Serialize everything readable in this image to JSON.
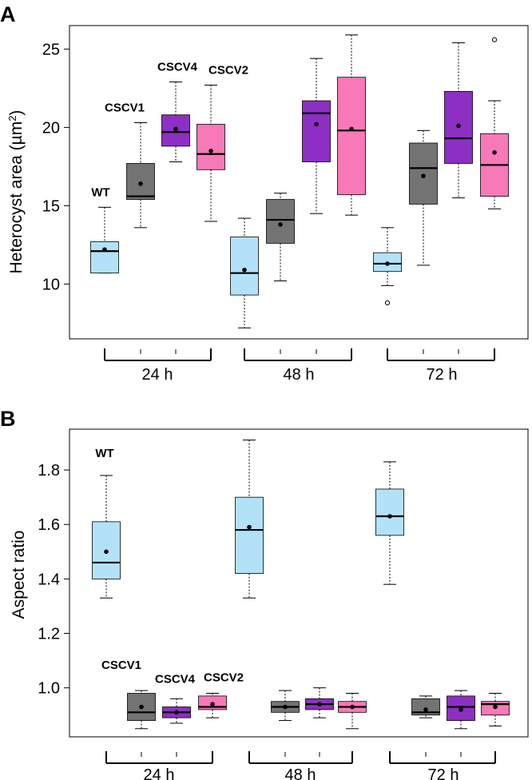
{
  "colors": {
    "WT": "#b3e2f8",
    "CSCV1": "#737373",
    "CSCV4": "#8e2fc4",
    "CSCV2": "#f879b8"
  },
  "chart_data": [
    {
      "panel": "A",
      "type": "boxplot",
      "ylabel_prefix": "Heterocyst area (",
      "ylabel_unit": "µm",
      "ylabel_sup": "2",
      "ylabel_suffix": ")",
      "ylim": [
        6.5,
        26.5
      ],
      "yticks": [
        10,
        15,
        20,
        25
      ],
      "groups": [
        "24 h",
        "48 h",
        "72 h"
      ],
      "strains": [
        "WT",
        "CSCV1",
        "CSCV4",
        "CSCV2"
      ],
      "boxes": [
        {
          "group": "24 h",
          "strain": "WT",
          "min": 10.7,
          "q1": 10.7,
          "median": 12.1,
          "q3": 12.7,
          "max": 14.9,
          "mean": 12.2,
          "outliers": []
        },
        {
          "group": "24 h",
          "strain": "CSCV1",
          "min": 13.6,
          "q1": 15.4,
          "median": 15.6,
          "q3": 17.7,
          "max": 20.3,
          "mean": 16.4,
          "outliers": []
        },
        {
          "group": "24 h",
          "strain": "CSCV4",
          "min": 17.8,
          "q1": 18.8,
          "median": 19.7,
          "q3": 20.8,
          "max": 22.9,
          "mean": 19.9,
          "outliers": []
        },
        {
          "group": "24 h",
          "strain": "CSCV2",
          "min": 14.0,
          "q1": 17.3,
          "median": 18.3,
          "q3": 20.2,
          "max": 22.7,
          "mean": 18.5,
          "outliers": []
        },
        {
          "group": "48 h",
          "strain": "WT",
          "min": 7.2,
          "q1": 9.3,
          "median": 10.7,
          "q3": 13.0,
          "max": 14.2,
          "mean": 10.9,
          "outliers": []
        },
        {
          "group": "48 h",
          "strain": "CSCV1",
          "min": 10.2,
          "q1": 12.6,
          "median": 14.1,
          "q3": 15.4,
          "max": 15.8,
          "mean": 13.8,
          "outliers": []
        },
        {
          "group": "48 h",
          "strain": "CSCV4",
          "min": 14.5,
          "q1": 17.8,
          "median": 20.9,
          "q3": 21.7,
          "max": 24.4,
          "mean": 20.2,
          "outliers": []
        },
        {
          "group": "48 h",
          "strain": "CSCV2",
          "min": 14.4,
          "q1": 15.7,
          "median": 19.8,
          "q3": 23.2,
          "max": 25.9,
          "mean": 19.9,
          "outliers": []
        },
        {
          "group": "72 h",
          "strain": "WT",
          "min": 9.9,
          "q1": 10.8,
          "median": 11.3,
          "q3": 12.0,
          "max": 13.6,
          "mean": 11.3,
          "outliers": [
            8.8
          ]
        },
        {
          "group": "72 h",
          "strain": "CSCV1",
          "min": 11.2,
          "q1": 15.1,
          "median": 17.4,
          "q3": 19.0,
          "max": 19.8,
          "mean": 16.9,
          "outliers": []
        },
        {
          "group": "72 h",
          "strain": "CSCV4",
          "min": 15.5,
          "q1": 17.7,
          "median": 19.3,
          "q3": 22.3,
          "max": 25.4,
          "mean": 20.1,
          "outliers": []
        },
        {
          "group": "72 h",
          "strain": "CSCV2",
          "min": 14.8,
          "q1": 15.6,
          "median": 17.6,
          "q3": 19.6,
          "max": 21.7,
          "mean": 18.4,
          "outliers": [
            25.6
          ]
        }
      ],
      "annotations": [
        {
          "text": "WT",
          "strain": "WT"
        },
        {
          "text": "CSCV1",
          "strain": "CSCV1"
        },
        {
          "text": "CSCV4",
          "strain": "CSCV4"
        },
        {
          "text": "CSCV2",
          "strain": "CSCV2"
        }
      ]
    },
    {
      "panel": "B",
      "type": "boxplot",
      "ylabel": "Aspect ratio",
      "ylim": [
        0.82,
        1.95
      ],
      "yticks": [
        1.0,
        1.2,
        1.4,
        1.6,
        1.8
      ],
      "ytick_labels": [
        "1.0",
        "1.2",
        "1.4",
        "1.6",
        "1.8"
      ],
      "groups": [
        "24 h",
        "48  h",
        "72 h"
      ],
      "strains": [
        "WT",
        "CSCV1",
        "CSCV4",
        "CSCV2"
      ],
      "boxes": [
        {
          "group": "24 h",
          "strain": "WT",
          "min": 1.33,
          "q1": 1.4,
          "median": 1.46,
          "q3": 1.61,
          "max": 1.78,
          "mean": 1.5,
          "outliers": []
        },
        {
          "group": "24 h",
          "strain": "CSCV1",
          "min": 0.85,
          "q1": 0.88,
          "median": 0.91,
          "q3": 0.98,
          "max": 0.99,
          "mean": 0.93,
          "outliers": []
        },
        {
          "group": "24 h",
          "strain": "CSCV4",
          "min": 0.87,
          "q1": 0.89,
          "median": 0.91,
          "q3": 0.93,
          "max": 0.96,
          "mean": 0.91,
          "outliers": []
        },
        {
          "group": "24 h",
          "strain": "CSCV2",
          "min": 0.89,
          "q1": 0.92,
          "median": 0.93,
          "q3": 0.97,
          "max": 0.98,
          "mean": 0.94,
          "outliers": []
        },
        {
          "group": "48  h",
          "strain": "WT",
          "min": 1.33,
          "q1": 1.42,
          "median": 1.58,
          "q3": 1.7,
          "max": 1.91,
          "mean": 1.59,
          "outliers": []
        },
        {
          "group": "48  h",
          "strain": "CSCV1",
          "min": 0.88,
          "q1": 0.91,
          "median": 0.93,
          "q3": 0.95,
          "max": 0.99,
          "mean": 0.93,
          "outliers": []
        },
        {
          "group": "48  h",
          "strain": "CSCV4",
          "min": 0.89,
          "q1": 0.92,
          "median": 0.94,
          "q3": 0.96,
          "max": 1.0,
          "mean": 0.94,
          "outliers": []
        },
        {
          "group": "48  h",
          "strain": "CSCV2",
          "min": 0.85,
          "q1": 0.91,
          "median": 0.93,
          "q3": 0.95,
          "max": 0.98,
          "mean": 0.93,
          "outliers": []
        },
        {
          "group": "72 h",
          "strain": "WT",
          "min": 1.38,
          "q1": 1.56,
          "median": 1.63,
          "q3": 1.73,
          "max": 1.83,
          "mean": 1.63,
          "outliers": []
        },
        {
          "group": "72 h",
          "strain": "CSCV1",
          "min": 0.89,
          "q1": 0.9,
          "median": 0.91,
          "q3": 0.96,
          "max": 0.97,
          "mean": 0.92,
          "outliers": []
        },
        {
          "group": "72 h",
          "strain": "CSCV4",
          "min": 0.85,
          "q1": 0.88,
          "median": 0.93,
          "q3": 0.97,
          "max": 0.99,
          "mean": 0.92,
          "outliers": []
        },
        {
          "group": "72 h",
          "strain": "CSCV2",
          "min": 0.86,
          "q1": 0.9,
          "median": 0.94,
          "q3": 0.95,
          "max": 0.98,
          "mean": 0.93,
          "outliers": []
        }
      ],
      "annotations": [
        {
          "text": "WT",
          "strain": "WT"
        },
        {
          "text": "CSCV1",
          "strain": "CSCV1"
        },
        {
          "text": "CSCV4",
          "strain": "CSCV4"
        },
        {
          "text": "CSCV2",
          "strain": "CSCV2"
        }
      ]
    }
  ]
}
